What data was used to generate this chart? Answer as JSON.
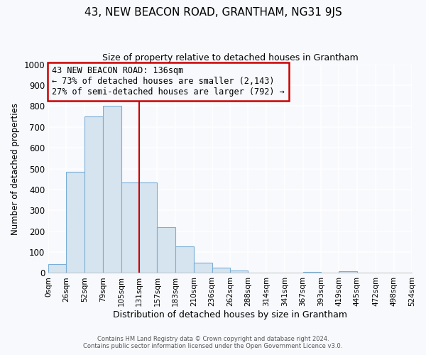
{
  "title": "43, NEW BEACON ROAD, GRANTHAM, NG31 9JS",
  "subtitle": "Size of property relative to detached houses in Grantham",
  "xlabel": "Distribution of detached houses by size in Grantham",
  "ylabel": "Number of detached properties",
  "bin_edges": [
    0,
    26,
    52,
    79,
    105,
    131,
    157,
    183,
    210,
    236,
    262,
    288,
    314,
    341,
    367,
    393,
    419,
    445,
    472,
    498,
    524
  ],
  "bin_labels": [
    "0sqm",
    "26sqm",
    "52sqm",
    "79sqm",
    "105sqm",
    "131sqm",
    "157sqm",
    "183sqm",
    "210sqm",
    "236sqm",
    "262sqm",
    "288sqm",
    "314sqm",
    "341sqm",
    "367sqm",
    "393sqm",
    "419sqm",
    "445sqm",
    "472sqm",
    "498sqm",
    "524sqm"
  ],
  "counts": [
    42,
    485,
    750,
    800,
    435,
    435,
    218,
    128,
    48,
    25,
    12,
    0,
    0,
    0,
    5,
    0,
    8,
    0,
    0,
    0
  ],
  "bar_color": "#d6e4f0",
  "bar_edge_color": "#7aaed6",
  "vline_x": 131,
  "vline_color": "#cc0000",
  "annotation_title": "43 NEW BEACON ROAD: 136sqm",
  "annotation_line1": "← 73% of detached houses are smaller (2,143)",
  "annotation_line2": "27% of semi-detached houses are larger (792) →",
  "annotation_box_color": "#cc0000",
  "ylim": [
    0,
    1000
  ],
  "yticks": [
    0,
    100,
    200,
    300,
    400,
    500,
    600,
    700,
    800,
    900,
    1000
  ],
  "footer1": "Contains HM Land Registry data © Crown copyright and database right 2024.",
  "footer2": "Contains public sector information licensed under the Open Government Licence v3.0.",
  "bg_color": "#f7f9fc",
  "plot_bg_color": "#f7f9fc",
  "grid_color": "#ffffff"
}
